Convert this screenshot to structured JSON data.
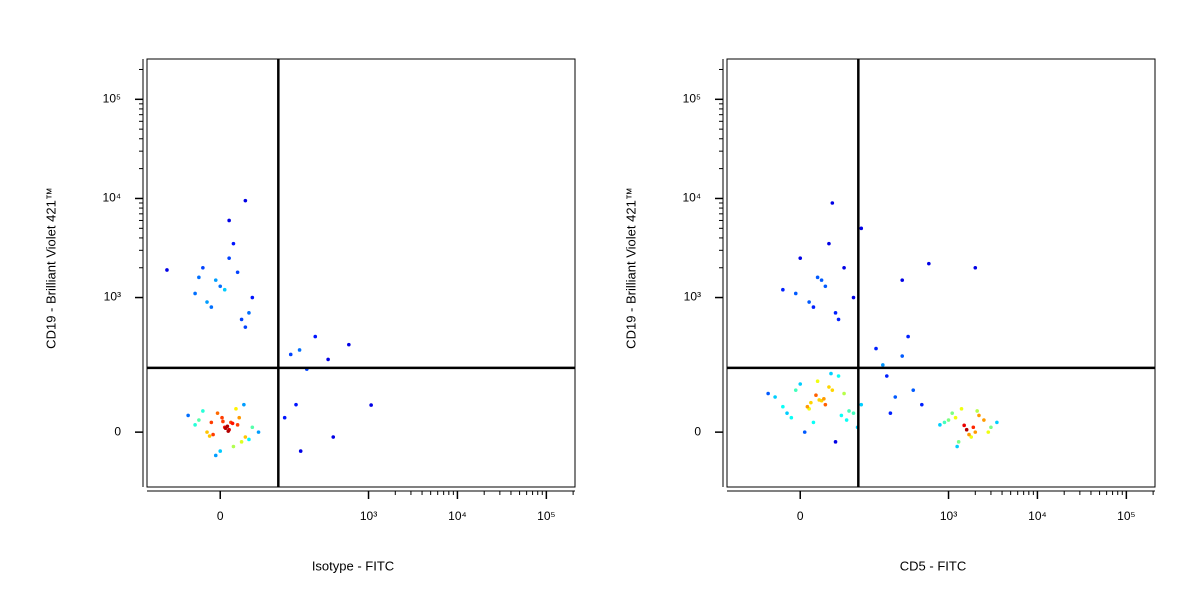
{
  "chart_data": [
    {
      "type": "scatter",
      "xlabel": "Isotype - FITC",
      "ylabel": "CD19 - Brilliant Violet 421™",
      "xscale": "biexponential",
      "yscale": "biexponential",
      "xlim": [
        -140,
        210000
      ],
      "ylim": [
        -145,
        255000
      ],
      "xticks": [
        0,
        {
          "value": 1000,
          "label": "10³"
        },
        {
          "value": 10000,
          "label": "10⁴"
        },
        {
          "value": 100000,
          "label": "10⁵"
        }
      ],
      "yticks": [
        0,
        {
          "value": 1000,
          "label": "10³"
        },
        {
          "value": 10000,
          "label": "10⁴"
        },
        {
          "value": 100000,
          "label": "10⁵"
        }
      ],
      "gate": {
        "x": 92,
        "y": 186
      },
      "x": [
        5,
        12,
        -8,
        20,
        2,
        -15,
        30,
        -25,
        10,
        8,
        -3,
        25,
        -30,
        15,
        40,
        -40,
        0,
        18,
        -10,
        35,
        6,
        -20,
        50,
        -5,
        22,
        14,
        3,
        -12,
        28,
        9,
        0,
        -15,
        20,
        -30,
        10,
        35,
        -5,
        25,
        -20,
        5,
        15,
        -10,
        40,
        -25,
        30,
        10,
        30,
        -80,
        165,
        250,
        350,
        200,
        600,
        130,
        150,
        400,
        110,
        170,
        1070
      ],
      "y": [
        10,
        20,
        -5,
        15,
        30,
        0,
        -10,
        25,
        5,
        12,
        40,
        -20,
        15,
        -30,
        10,
        35,
        -40,
        50,
        20,
        -15,
        8,
        45,
        0,
        -50,
        30,
        18,
        22,
        -8,
        60,
        2,
        1300,
        900,
        1800,
        1100,
        2500,
        700,
        1500,
        600,
        2000,
        1200,
        3500,
        800,
        1000,
        1600,
        500,
        6000,
        9500,
        1900,
        290,
        400,
        230,
        180,
        330,
        260,
        60,
        -10,
        30,
        -40,
        59
      ]
    },
    {
      "type": "scatter",
      "xlabel": "CD5 - FITC",
      "ylabel": "CD19 - Brilliant Violet 421™",
      "xscale": "biexponential",
      "yscale": "biexponential",
      "xlim": [
        -140,
        210000
      ],
      "ylim": [
        -145,
        255000
      ],
      "xticks": [
        0,
        {
          "value": 1000,
          "label": "10³"
        },
        {
          "value": 10000,
          "label": "10⁴"
        },
        {
          "value": 100000,
          "label": "10⁵"
        }
      ],
      "yticks": [
        0,
        {
          "value": 1000,
          "label": "10³"
        },
        {
          "value": 10000,
          "label": "10⁴"
        },
        {
          "value": 100000,
          "label": "10⁵"
        }
      ],
      "gate": {
        "x": 92,
        "y": 186
      },
      "x": [
        22,
        10,
        40,
        -10,
        60,
        30,
        0,
        80,
        -30,
        15,
        50,
        25,
        -20,
        35,
        5,
        100,
        45,
        -40,
        70,
        20,
        12,
        55,
        -5,
        28,
        90,
        18,
        38,
        -15,
        65,
        8,
        1500,
        1200,
        2000,
        900,
        1800,
        2500,
        1100,
        1600,
        3000,
        1300,
        2200,
        800,
        1700,
        1400,
        2800,
        1000,
        1900,
        3500,
        1250,
        2100,
        30,
        10,
        60,
        -5,
        45,
        20,
        80,
        0,
        35,
        15,
        -20,
        50,
        25,
        40,
        100,
        600,
        2000,
        300,
        200,
        300,
        150,
        400,
        250,
        500,
        180,
        350,
        220
      ],
      "y": [
        72,
        50,
        100,
        30,
        90,
        60,
        120,
        40,
        80,
        20,
        150,
        70,
        55,
        110,
        0,
        60,
        -20,
        90,
        45,
        130,
        65,
        35,
        100,
        75,
        10,
        85,
        160,
        40,
        25,
        55,
        14,
        30,
        0,
        20,
        -10,
        25,
        40,
        5,
        10,
        -20,
        35,
        15,
        -5,
        50,
        0,
        25,
        10,
        20,
        -30,
        45,
        1300,
        900,
        2000,
        1100,
        700,
        1600,
        1000,
        2500,
        3500,
        800,
        1200,
        600,
        1500,
        9000,
        5000,
        2200,
        2000,
        1500,
        150,
        250,
        300,
        100,
        80,
        60,
        200,
        400,
        40
      ]
    }
  ]
}
